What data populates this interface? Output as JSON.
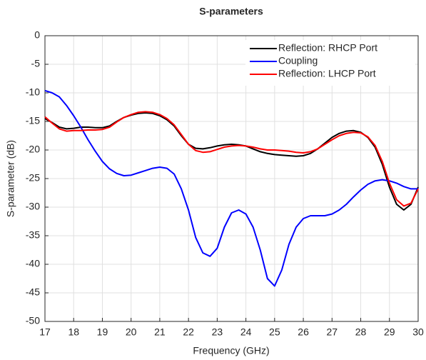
{
  "chart_data": {
    "type": "line",
    "title": "S-parameters",
    "x_label": "Frequency (GHz)",
    "y_label": "S-parameter (dB)",
    "x": [
      17,
      17.25,
      17.5,
      17.75,
      18,
      18.25,
      18.5,
      18.75,
      19,
      19.25,
      19.5,
      19.75,
      20,
      20.25,
      20.5,
      20.75,
      21,
      21.25,
      21.5,
      21.75,
      22,
      22.25,
      22.5,
      22.75,
      23,
      23.25,
      23.5,
      23.75,
      24,
      24.25,
      24.5,
      24.75,
      25,
      25.25,
      25.5,
      25.75,
      26,
      26.25,
      26.5,
      26.75,
      27,
      27.25,
      27.5,
      27.75,
      28,
      28.25,
      28.5,
      28.75,
      29,
      29.25,
      29.5,
      29.75,
      30
    ],
    "series": [
      {
        "name": "Reflection: RHCP Port",
        "color": "#000000",
        "values": [
          -14.5,
          -15.2,
          -16,
          -16.3,
          -16.2,
          -16,
          -16,
          -16.1,
          -16.1,
          -15.8,
          -15,
          -14.3,
          -13.9,
          -13.6,
          -13.5,
          -13.6,
          -14,
          -14.7,
          -15.8,
          -17.5,
          -19,
          -19.7,
          -19.8,
          -19.6,
          -19.3,
          -19.1,
          -19,
          -19.1,
          -19.3,
          -19.8,
          -20.3,
          -20.6,
          -20.8,
          -20.9,
          -21,
          -21.1,
          -21,
          -20.6,
          -19.8,
          -18.8,
          -17.8,
          -17.1,
          -16.7,
          -16.6,
          -16.9,
          -17.8,
          -19.5,
          -22.5,
          -26.5,
          -29.5,
          -30.5,
          -29.5,
          -26.5
        ]
      },
      {
        "name": "Coupling",
        "color": "#0000ff",
        "values": [
          -9.6,
          -10,
          -10.7,
          -12.2,
          -14,
          -16,
          -18.2,
          -20.2,
          -22,
          -23.3,
          -24.1,
          -24.5,
          -24.4,
          -24,
          -23.6,
          -23.2,
          -23,
          -23.2,
          -24.2,
          -26.8,
          -30.5,
          -35.3,
          -38,
          -38.6,
          -37.2,
          -33.5,
          -31,
          -30.5,
          -31.2,
          -33.5,
          -37.5,
          -42.5,
          -43.8,
          -41,
          -36.5,
          -33.5,
          -32,
          -31.5,
          -31.5,
          -31.5,
          -31.2,
          -30.5,
          -29.5,
          -28.2,
          -27,
          -26,
          -25.4,
          -25.2,
          -25.4,
          -25.8,
          -26.4,
          -26.8,
          -26.8
        ]
      },
      {
        "name": "Reflection: LHCP Port",
        "color": "#ff0000",
        "values": [
          -14.2,
          -15.3,
          -16.3,
          -16.7,
          -16.6,
          -16.6,
          -16.5,
          -16.5,
          -16.4,
          -16,
          -15.1,
          -14.3,
          -13.8,
          -13.4,
          -13.3,
          -13.4,
          -13.8,
          -14.5,
          -15.6,
          -17.3,
          -19,
          -20.1,
          -20.4,
          -20.3,
          -19.9,
          -19.5,
          -19.3,
          -19.2,
          -19.3,
          -19.5,
          -19.8,
          -20,
          -20,
          -20.1,
          -20.2,
          -20.4,
          -20.5,
          -20.3,
          -19.8,
          -19,
          -18.2,
          -17.5,
          -17.1,
          -16.9,
          -17,
          -17.7,
          -19.2,
          -22,
          -25.8,
          -28.7,
          -29.8,
          -29.3,
          -26.8
        ]
      }
    ],
    "xlim": [
      17,
      30
    ],
    "xticks": [
      17,
      18,
      19,
      20,
      21,
      22,
      23,
      24,
      25,
      26,
      27,
      28,
      29,
      30
    ],
    "ylim": [
      -50,
      0
    ],
    "yticks": [
      -50,
      -45,
      -40,
      -35,
      -30,
      -25,
      -20,
      -15,
      -10,
      -5,
      0
    ],
    "grid": true,
    "legend": "northeast"
  }
}
